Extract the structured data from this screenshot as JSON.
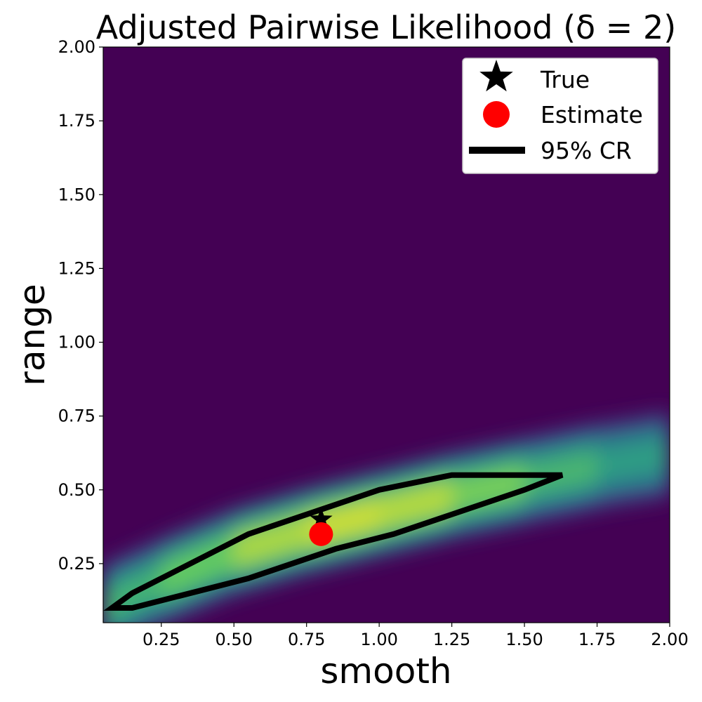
{
  "chart_data": {
    "type": "heatmap",
    "title": "Adjusted Pairwise Likelihood (δ = 2)",
    "xlabel": "smooth",
    "ylabel": "range",
    "xlim": [
      0.05,
      2.0
    ],
    "ylim": [
      0.05,
      2.0
    ],
    "xticks": [
      0.25,
      0.5,
      0.75,
      1.0,
      1.25,
      1.5,
      1.75,
      2.0
    ],
    "xtick_labels": [
      "0.25",
      "0.50",
      "0.75",
      "1.00",
      "1.25",
      "1.50",
      "1.75",
      "2.00"
    ],
    "yticks": [
      0.25,
      0.5,
      0.75,
      1.0,
      1.25,
      1.5,
      1.75,
      2.0
    ],
    "ytick_labels": [
      "0.25",
      "0.50",
      "0.75",
      "1.00",
      "1.25",
      "1.50",
      "1.75",
      "2.00"
    ],
    "colormap": "viridis",
    "background_color": "#440154",
    "grid": false,
    "legend_position": "top-right",
    "density_ridge": {
      "x": [
        0.05,
        0.25,
        0.5,
        0.75,
        1.0,
        1.25,
        1.5,
        1.75,
        2.0
      ],
      "center_range": [
        0.1,
        0.19,
        0.29,
        0.36,
        0.42,
        0.48,
        0.53,
        0.58,
        0.62
      ],
      "peak_smooth": 0.9
    },
    "true_value": {
      "smooth": 0.8,
      "range": 0.4
    },
    "estimate": {
      "smooth": 0.8,
      "range": 0.35
    },
    "credible_region_95": {
      "smooth": [
        0.08,
        0.15,
        0.55,
        1.0,
        1.25,
        1.63,
        1.5,
        1.05,
        0.85,
        0.55,
        0.15,
        0.08
      ],
      "range": [
        0.1,
        0.15,
        0.35,
        0.5,
        0.55,
        0.55,
        0.5,
        0.35,
        0.3,
        0.2,
        0.1,
        0.1
      ]
    },
    "legend": [
      {
        "marker": "star",
        "label": "True",
        "color": "#000000"
      },
      {
        "marker": "circle",
        "label": "Estimate",
        "color": "#ff0000"
      },
      {
        "marker": "line",
        "label": "95% CR",
        "color": "#000000"
      }
    ]
  }
}
